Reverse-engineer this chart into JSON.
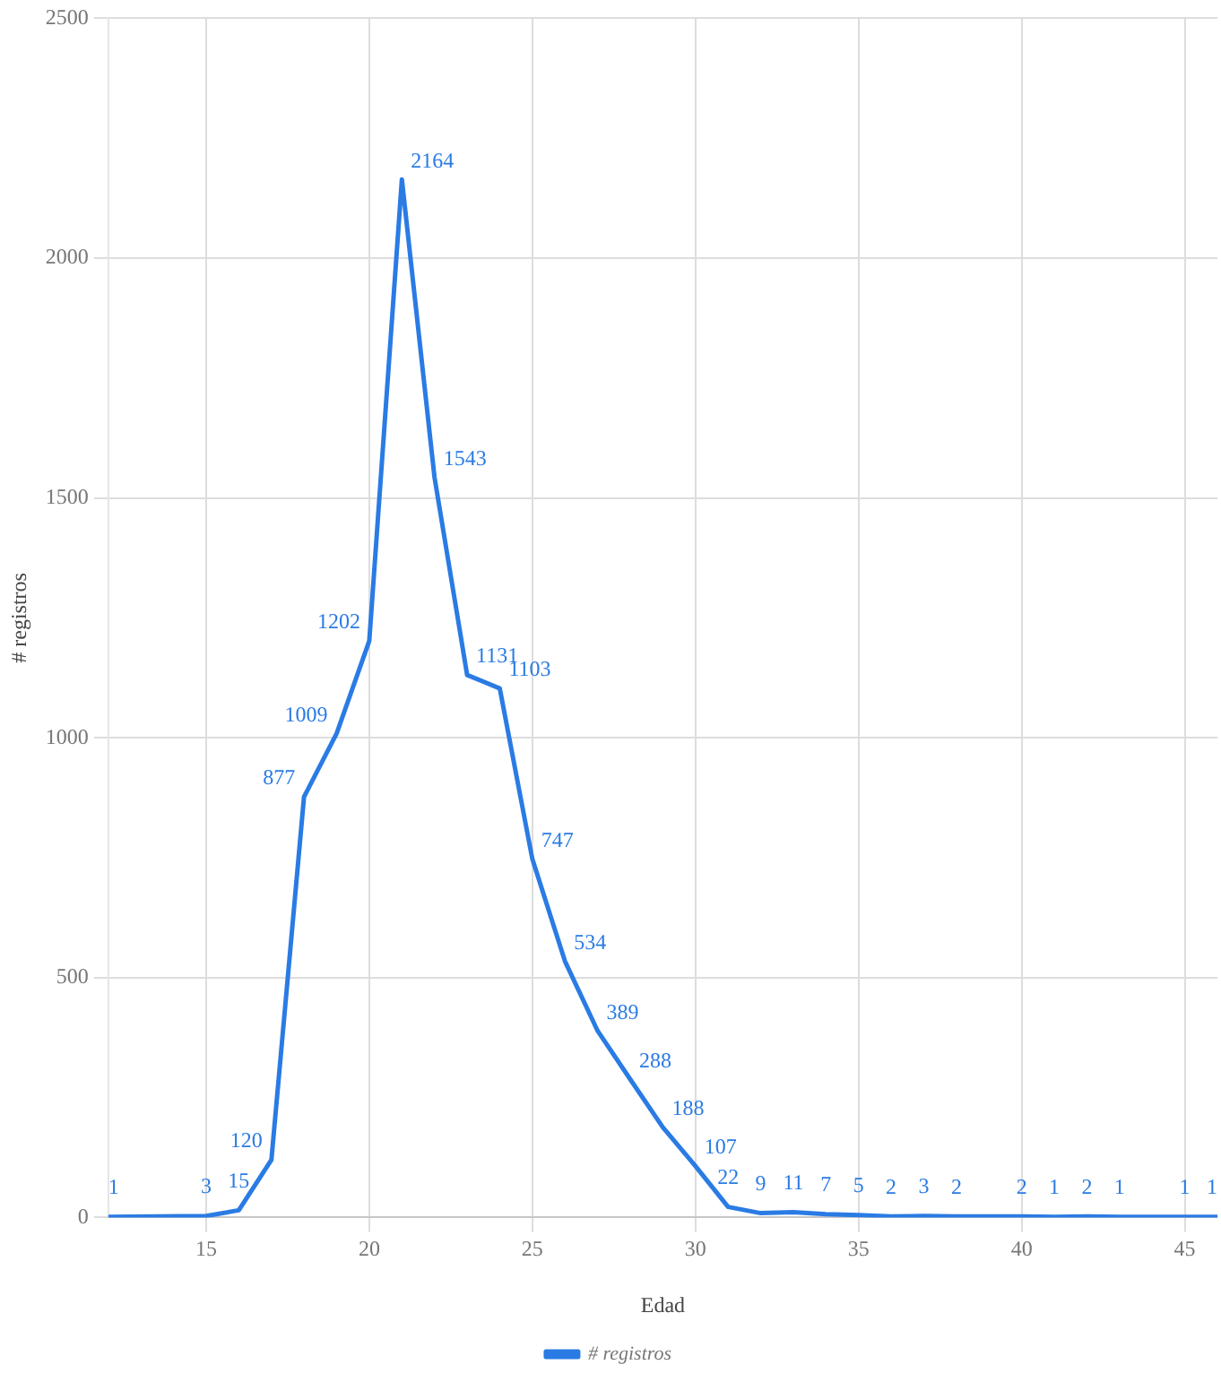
{
  "chart_data": {
    "type": "line",
    "xlabel": "Edad",
    "ylabel": "# registros",
    "x": [
      12,
      15,
      16,
      17,
      18,
      19,
      20,
      21,
      22,
      23,
      24,
      25,
      26,
      27,
      28,
      29,
      30,
      31,
      32,
      33,
      34,
      35,
      36,
      37,
      38,
      40,
      41,
      42,
      43,
      45,
      46
    ],
    "series": [
      {
        "name": "# registros",
        "color": "#2a7be4",
        "values": [
          1,
          3,
          15,
          120,
          877,
          1009,
          1202,
          2164,
          1543,
          1131,
          1103,
          747,
          534,
          389,
          288,
          188,
          107,
          22,
          9,
          11,
          7,
          5,
          2,
          3,
          2,
          2,
          1,
          2,
          1,
          1,
          1
        ]
      }
    ],
    "xlim": [
      12,
      46
    ],
    "xticks": [
      15,
      20,
      25,
      30,
      35,
      40,
      45
    ],
    "ylim": [
      0,
      2500
    ],
    "yticks": [
      0,
      500,
      1000,
      1500,
      2000,
      2500
    ],
    "grid": true,
    "legend": "bottom",
    "marker": "none",
    "line_style": "solid",
    "data_labels": true
  }
}
